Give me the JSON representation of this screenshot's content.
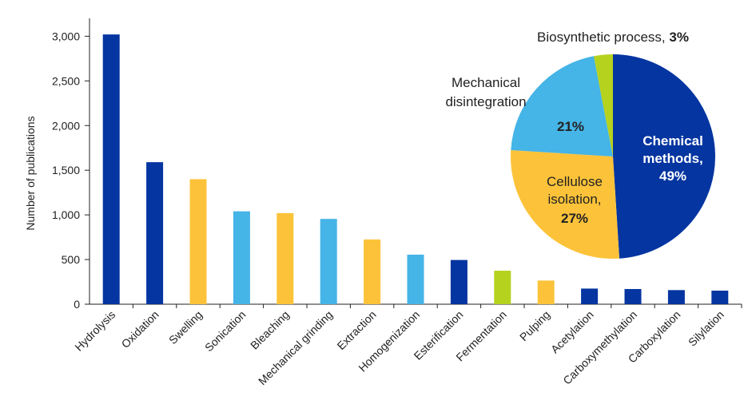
{
  "chart_data": [
    {
      "type": "bar",
      "ylabel": "Number of publications",
      "ylim": [
        0,
        3200
      ],
      "yticks": [
        0,
        500,
        1000,
        1500,
        2000,
        2500,
        3000
      ],
      "ytick_labels": [
        "0",
        "500",
        "1,000",
        "1,500",
        "2,000",
        "2,500",
        "3,000"
      ],
      "grid": false,
      "categories": [
        "Hydrolysis",
        "Oxidation",
        "Swelling",
        "Sonication",
        "Bleaching",
        "Mechanical grinding",
        "Extraction",
        "Homogenization",
        "Esterification",
        "Fermentation",
        "Pulping",
        "Acetylation",
        "Carboxymethylation",
        "Carboxylation",
        "Silylation"
      ],
      "values": [
        3020,
        1590,
        1400,
        1040,
        1020,
        955,
        725,
        555,
        495,
        375,
        265,
        175,
        170,
        158,
        152
      ],
      "group": [
        "chemical",
        "chemical",
        "cellulose",
        "mechanical",
        "cellulose",
        "mechanical",
        "cellulose",
        "mechanical",
        "chemical",
        "biosynthetic",
        "cellulose",
        "chemical",
        "chemical",
        "chemical",
        "chemical"
      ]
    },
    {
      "type": "pie",
      "slices": [
        {
          "key": "chemical",
          "name": "Chemical methods,",
          "lines": [
            "Chemical",
            "methods,"
          ],
          "pct_label": "49%",
          "value": 49
        },
        {
          "key": "cellulose",
          "name": "Cellulose isolation,",
          "lines": [
            "Cellulose",
            "isolation,"
          ],
          "pct_label": "27%",
          "value": 27
        },
        {
          "key": "mechanical",
          "name": "Mechanical disintegration",
          "lines": [
            "Mechanical",
            "disintegration"
          ],
          "pct_label": "21%",
          "value": 21
        },
        {
          "key": "biosynthetic",
          "name": "Biosynthetic process,",
          "lines": [
            "Biosynthetic process,"
          ],
          "pct_label": "3%",
          "value": 3
        }
      ]
    }
  ],
  "colors": {
    "chemical": "#0535a0",
    "cellulose": "#fcc33a",
    "mechanical": "#45b4e6",
    "biosynthetic": "#b5d21e",
    "axis": "#222222"
  }
}
